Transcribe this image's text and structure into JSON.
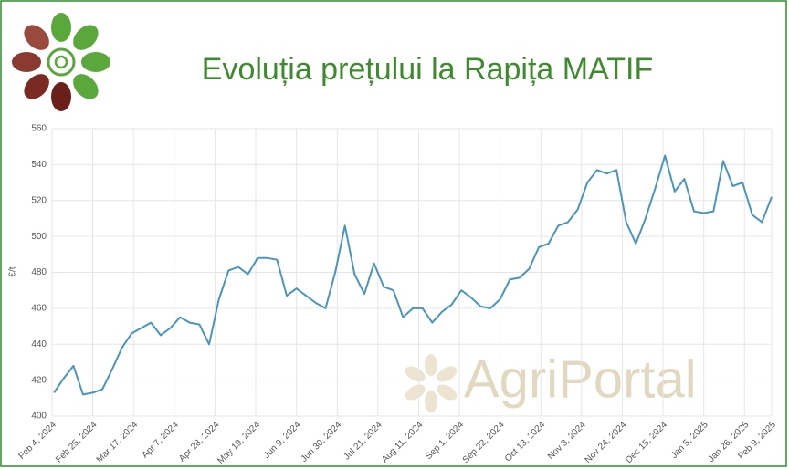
{
  "chart_data": {
    "type": "line",
    "title": "Evoluția prețului la Rapița MATIF",
    "watermark": "AgriPortal",
    "y_label": "€/t",
    "x": [
      "2024-02-05",
      "2024-02-10",
      "2024-02-15",
      "2024-02-20",
      "2024-02-25",
      "2024-03-01",
      "2024-03-06",
      "2024-03-11",
      "2024-03-16",
      "2024-03-21",
      "2024-03-26",
      "2024-03-31",
      "2024-04-05",
      "2024-04-10",
      "2024-04-15",
      "2024-04-20",
      "2024-04-25",
      "2024-04-30",
      "2024-05-05",
      "2024-05-10",
      "2024-05-15",
      "2024-05-20",
      "2024-05-25",
      "2024-05-30",
      "2024-06-04",
      "2024-06-09",
      "2024-06-14",
      "2024-06-19",
      "2024-06-24",
      "2024-06-29",
      "2024-07-04",
      "2024-07-09",
      "2024-07-14",
      "2024-07-19",
      "2024-07-24",
      "2024-07-29",
      "2024-08-03",
      "2024-08-08",
      "2024-08-13",
      "2024-08-18",
      "2024-08-23",
      "2024-08-28",
      "2024-09-02",
      "2024-09-07",
      "2024-09-12",
      "2024-09-17",
      "2024-09-22",
      "2024-09-27",
      "2024-10-02",
      "2024-10-07",
      "2024-10-12",
      "2024-10-17",
      "2024-10-22",
      "2024-10-27",
      "2024-11-01",
      "2024-11-06",
      "2024-11-11",
      "2024-11-16",
      "2024-11-21",
      "2024-11-26",
      "2024-12-01",
      "2024-12-06",
      "2024-12-11",
      "2024-12-16",
      "2024-12-21",
      "2024-12-26",
      "2024-12-31",
      "2025-01-05",
      "2025-01-10",
      "2025-01-15",
      "2025-01-20",
      "2025-01-25",
      "2025-01-30",
      "2025-02-04",
      "2025-02-09"
    ],
    "series": [
      {
        "name": "Rapița MATIF",
        "color": "#4a95c0",
        "values": [
          413,
          421,
          428,
          412,
          413,
          415,
          426,
          438,
          446,
          449,
          452,
          445,
          449,
          455,
          452,
          451,
          440,
          465,
          481,
          483,
          479,
          488,
          488,
          487,
          467,
          471,
          467,
          463,
          460,
          480,
          506,
          479,
          468,
          485,
          472,
          470,
          455,
          460,
          460,
          452,
          458,
          462,
          470,
          466,
          461,
          460,
          465,
          476,
          477,
          482,
          494,
          496,
          506,
          508,
          515,
          530,
          537,
          535,
          537,
          508,
          496,
          510,
          527,
          545,
          525,
          532,
          514,
          513,
          514,
          542,
          528,
          530,
          512,
          508,
          522
        ]
      }
    ],
    "xlim": [
      "2024-02-04",
      "2025-02-09"
    ],
    "xticks": [
      {
        "value": "2024-02-04",
        "label": "Feb 4, 2024"
      },
      {
        "value": "2024-02-25",
        "label": "Feb 25, 2024"
      },
      {
        "value": "2024-03-17",
        "label": "Mar 17, 2024"
      },
      {
        "value": "2024-04-07",
        "label": "Apr 7, 2024"
      },
      {
        "value": "2024-04-28",
        "label": "Apr 28, 2024"
      },
      {
        "value": "2024-05-19",
        "label": "May 19, 2024"
      },
      {
        "value": "2024-06-09",
        "label": "Jun 9, 2024"
      },
      {
        "value": "2024-06-30",
        "label": "Jun 30, 2024"
      },
      {
        "value": "2024-07-21",
        "label": "Jul 21, 2024"
      },
      {
        "value": "2024-08-11",
        "label": "Aug 11, 2024"
      },
      {
        "value": "2024-09-01",
        "label": "Sep 1, 2024"
      },
      {
        "value": "2024-09-22",
        "label": "Sep 22, 2024"
      },
      {
        "value": "2024-10-13",
        "label": "Oct 13, 2024"
      },
      {
        "value": "2024-11-03",
        "label": "Nov 3, 2024"
      },
      {
        "value": "2024-11-24",
        "label": "Nov 24, 2024"
      },
      {
        "value": "2024-12-15",
        "label": "Dec 15, 2024"
      },
      {
        "value": "2025-01-05",
        "label": "Jan 5, 2025"
      },
      {
        "value": "2025-01-26",
        "label": "Jan 26, 2025"
      },
      {
        "value": "2025-02-09",
        "label": "Feb 9, 2025"
      }
    ],
    "ylim": [
      400,
      560
    ],
    "yticks": [
      400,
      420,
      440,
      460,
      480,
      500,
      520,
      540,
      560
    ],
    "grid": true
  }
}
